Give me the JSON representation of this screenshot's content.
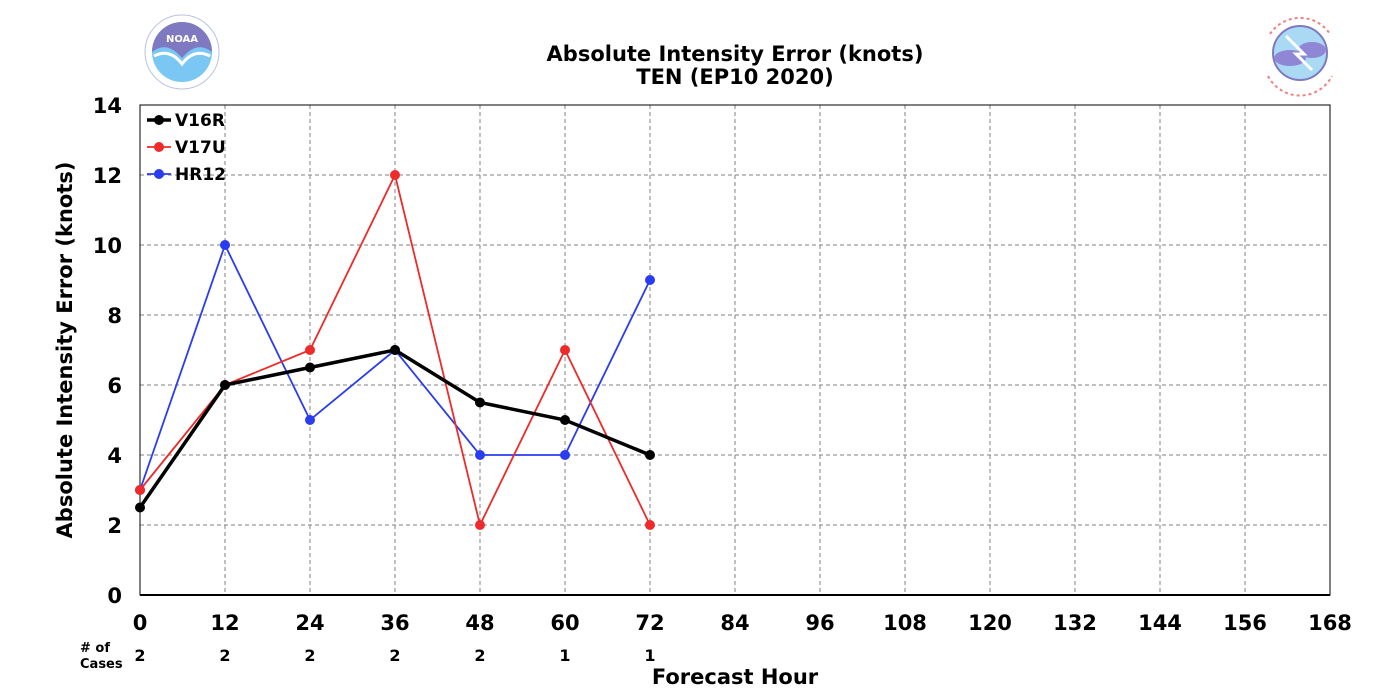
{
  "title": "Absolute Intensity Error (knots)",
  "subtitle": "TEN (EP10 2020)",
  "logos": {
    "left": {
      "name": "NOAA",
      "text": "NOAA",
      "ring_text": "NATIONAL OCEANIC AND ATMOSPHERIC ADMINISTRATION · U.S. DEPARTMENT OF COMMERCE"
    },
    "right": {
      "name": "National Weather Service",
      "ring_text": "NATIONAL WEATHER SERVICE"
    }
  },
  "cases_label_line1": "# of",
  "cases_label_line2": "Cases",
  "chart_data": {
    "type": "line",
    "xlabel": "Forecast Hour",
    "ylabel": "Absolute Intensity Error (knots)",
    "xlim": [
      0,
      168
    ],
    "ylim": [
      0,
      14
    ],
    "xticks": [
      0,
      12,
      24,
      36,
      48,
      60,
      72,
      84,
      96,
      108,
      120,
      132,
      144,
      156,
      168
    ],
    "yticks": [
      0,
      2,
      4,
      6,
      8,
      10,
      12,
      14
    ],
    "grid": true,
    "legend_position": "top-left",
    "series": [
      {
        "name": "V16R",
        "color": "#000000",
        "x": [
          0,
          12,
          24,
          36,
          48,
          60,
          72
        ],
        "values": [
          2.5,
          6,
          6.5,
          7,
          5.5,
          5,
          4
        ]
      },
      {
        "name": "V17U",
        "color": "#ee2a2a",
        "x": [
          0,
          12,
          24,
          36,
          48,
          60,
          72
        ],
        "values": [
          3,
          6,
          7,
          12,
          2,
          7,
          2
        ]
      },
      {
        "name": "HR12",
        "color": "#2a3cf0",
        "x": [
          0,
          12,
          24,
          36,
          48,
          60,
          72
        ],
        "values": [
          3,
          10,
          5,
          7,
          4,
          4,
          9
        ]
      }
    ],
    "cases": {
      "x": [
        0,
        12,
        24,
        36,
        48,
        60,
        72
      ],
      "counts": [
        2,
        2,
        2,
        2,
        2,
        1,
        1
      ]
    }
  }
}
